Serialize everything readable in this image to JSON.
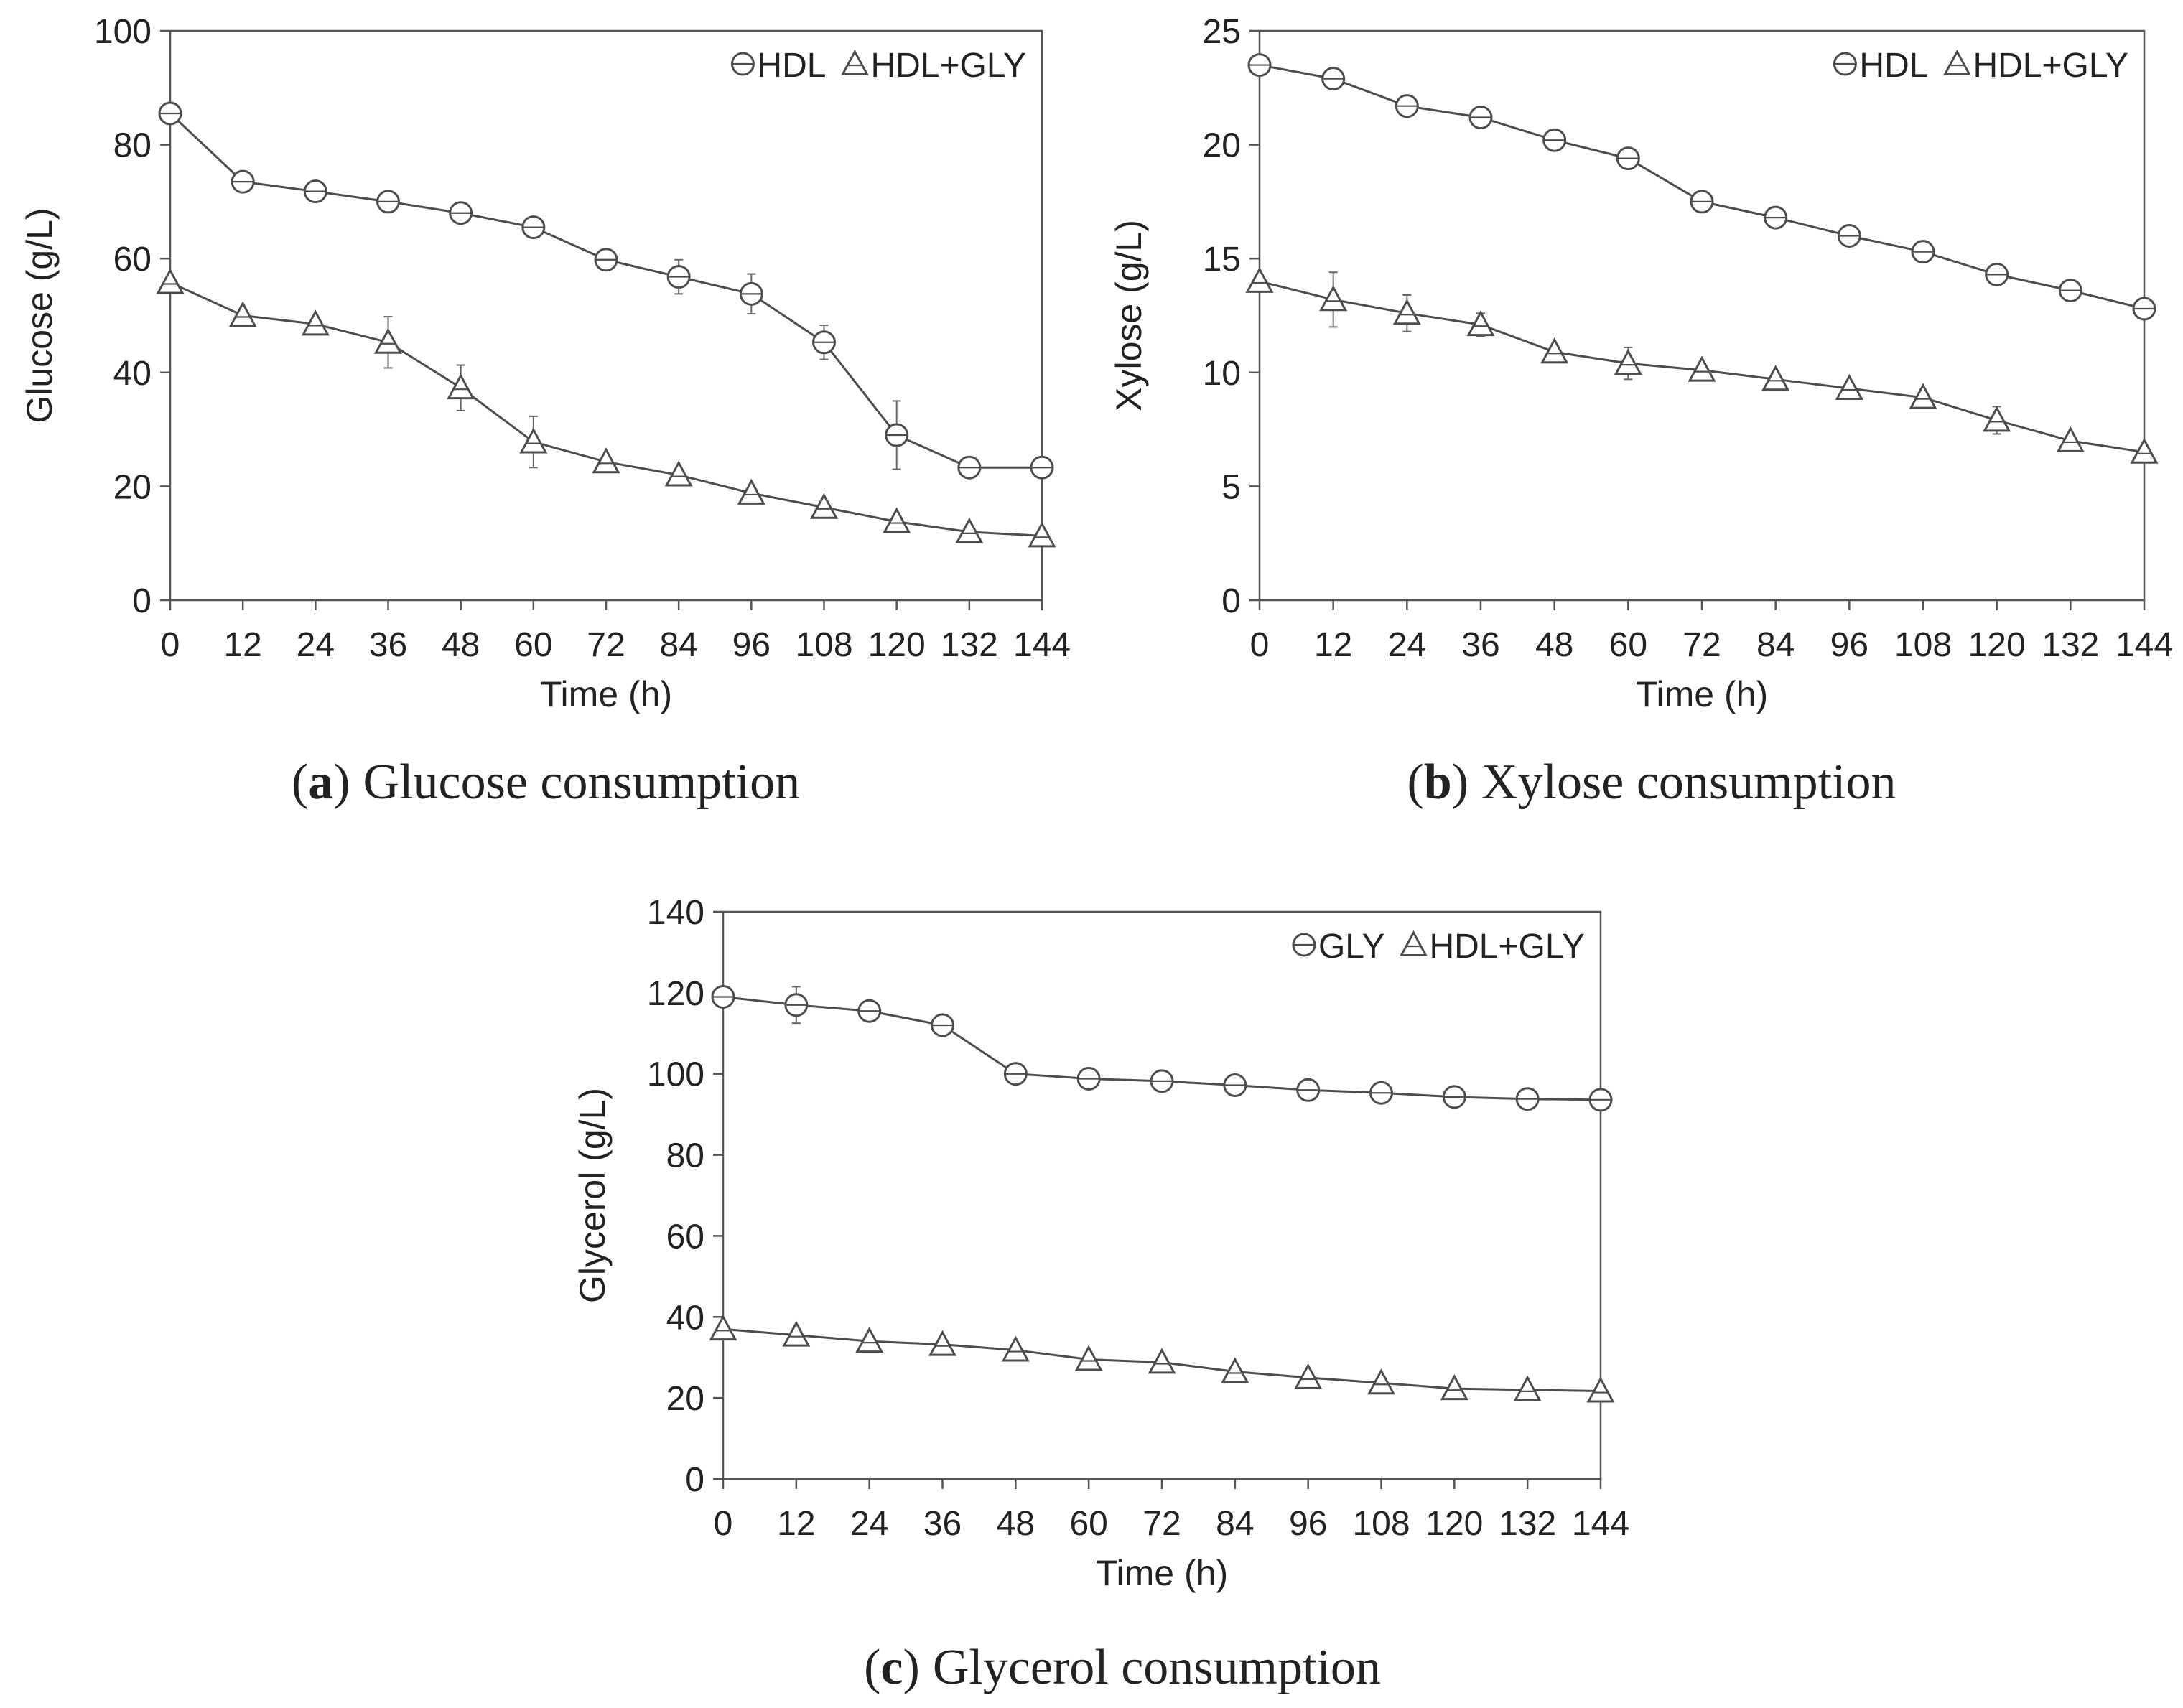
{
  "chart_data": [
    {
      "id": "a",
      "type": "line",
      "title": "",
      "caption": {
        "letter": "a",
        "text": "Glucose consumption",
        "open": "(",
        "close": ")"
      },
      "xlabel": "Time (h)",
      "ylabel": "Glucose (g/L)",
      "xlim": [
        0,
        144
      ],
      "ylim": [
        0,
        100
      ],
      "xticks": [
        0,
        12,
        24,
        36,
        48,
        60,
        72,
        84,
        96,
        108,
        120,
        132,
        144
      ],
      "yticks": [
        0,
        20,
        40,
        60,
        80,
        100
      ],
      "grid": false,
      "legend_position": "top-right",
      "x": [
        0,
        12,
        24,
        36,
        48,
        60,
        72,
        84,
        96,
        108,
        120,
        132,
        144
      ],
      "series": [
        {
          "name": "HDL",
          "marker": "circle",
          "values": [
            85.5,
            73.5,
            71.8,
            70.0,
            68.0,
            65.5,
            59.8,
            56.8,
            53.8,
            45.3,
            29.0,
            23.3,
            23.3
          ],
          "errors": [
            1.0,
            1.0,
            0.8,
            1.5,
            0.8,
            0.8,
            1.8,
            3.0,
            3.5,
            3.0,
            6.0,
            1.2,
            0.8
          ]
        },
        {
          "name": "HDL+GLY",
          "marker": "triangle",
          "values": [
            55.8,
            50.0,
            48.5,
            45.3,
            37.3,
            27.8,
            24.3,
            22.0,
            18.8,
            16.3,
            13.8,
            12.0,
            11.3
          ],
          "errors": [
            0.8,
            0.8,
            0.8,
            4.5,
            4.0,
            4.5,
            1.0,
            0.8,
            0.8,
            0.8,
            0.8,
            0.8,
            0.8
          ]
        }
      ]
    },
    {
      "id": "b",
      "type": "line",
      "title": "",
      "caption": {
        "letter": "b",
        "text": "Xylose consumption",
        "open": "(",
        "close": ")"
      },
      "xlabel": "Time (h)",
      "ylabel": "Xylose (g/L)",
      "xlim": [
        0,
        144
      ],
      "ylim": [
        0,
        25
      ],
      "xticks": [
        0,
        12,
        24,
        36,
        48,
        60,
        72,
        84,
        96,
        108,
        120,
        132,
        144
      ],
      "yticks": [
        0,
        5,
        10,
        15,
        20,
        25
      ],
      "grid": false,
      "legend_position": "top-right",
      "x": [
        0,
        12,
        24,
        36,
        48,
        60,
        72,
        84,
        96,
        108,
        120,
        132,
        144
      ],
      "series": [
        {
          "name": "HDL",
          "marker": "circle",
          "values": [
            23.5,
            22.9,
            21.7,
            21.2,
            20.2,
            19.4,
            17.5,
            16.8,
            16.0,
            15.3,
            14.3,
            13.6,
            12.8
          ],
          "errors": [
            0.2,
            0.3,
            0.4,
            0.3,
            0.3,
            0.4,
            0.3,
            0.3,
            0.2,
            0.3,
            0.3,
            0.2,
            0.2
          ]
        },
        {
          "name": "HDL+GLY",
          "marker": "triangle",
          "values": [
            14.0,
            13.2,
            12.6,
            12.1,
            10.9,
            10.4,
            10.1,
            9.7,
            9.3,
            8.9,
            7.9,
            7.0,
            6.5
          ],
          "errors": [
            0.2,
            1.2,
            0.8,
            0.5,
            0.3,
            0.7,
            0.3,
            0.3,
            0.3,
            0.3,
            0.6,
            0.2,
            0.2
          ]
        }
      ]
    },
    {
      "id": "c",
      "type": "line",
      "title": "",
      "caption": {
        "letter": "c",
        "text": "Glycerol consumption",
        "open": "(",
        "close": ")"
      },
      "xlabel": "Time (h)",
      "ylabel": "Glycerol (g/L)",
      "xlim": [
        0,
        144
      ],
      "ylim": [
        0,
        140
      ],
      "xticks": [
        0,
        12,
        24,
        36,
        48,
        60,
        72,
        84,
        96,
        108,
        120,
        132,
        144
      ],
      "yticks": [
        0,
        20,
        40,
        60,
        80,
        100,
        120,
        140
      ],
      "grid": false,
      "legend_position": "top-right",
      "x": [
        0,
        12,
        24,
        36,
        48,
        60,
        72,
        84,
        96,
        108,
        120,
        132,
        144
      ],
      "series": [
        {
          "name": "GLY",
          "marker": "circle",
          "values": [
            119.0,
            117.0,
            115.5,
            112.0,
            100.0,
            98.8,
            98.2,
            97.2,
            96.0,
            95.3,
            94.3,
            93.8,
            93.6
          ],
          "errors": [
            1.0,
            4.5,
            1.5,
            1.5,
            1.0,
            1.0,
            1.0,
            1.0,
            1.0,
            1.0,
            2.5,
            2.5,
            1.0
          ]
        },
        {
          "name": "HDL+GLY",
          "marker": "triangle",
          "values": [
            37.0,
            35.5,
            34.0,
            33.2,
            31.8,
            29.5,
            28.8,
            26.5,
            25.0,
            23.7,
            22.3,
            22.0,
            21.7
          ],
          "errors": [
            0.8,
            0.8,
            0.8,
            0.8,
            1.5,
            1.0,
            1.0,
            1.0,
            0.8,
            0.8,
            0.8,
            0.8,
            0.8
          ]
        }
      ]
    }
  ]
}
